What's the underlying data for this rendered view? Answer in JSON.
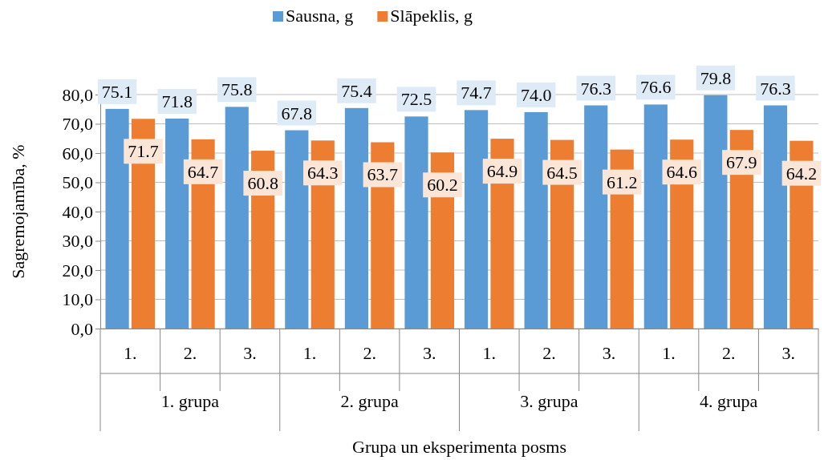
{
  "chart_data": {
    "type": "bar",
    "xlabel": "Grupa un eksperimenta posms",
    "ylabel": "Sagremojamība, %",
    "categories": [
      "1.",
      "2.",
      "3.",
      "1.",
      "2.",
      "3.",
      "1.",
      "2.",
      "3.",
      "1.",
      "2.",
      "3."
    ],
    "annotations": [
      "1. grupa",
      "2. grupa",
      "3. grupa",
      "4. grupa"
    ],
    "series": [
      {
        "name": "Sausna, g",
        "color": "#5b9bd5",
        "values": [
          75.1,
          71.8,
          75.8,
          67.8,
          75.4,
          72.5,
          74.7,
          74.0,
          76.3,
          76.6,
          79.8,
          76.3
        ],
        "value_labels": [
          "75.1",
          "71.8",
          "75.8",
          "67.8",
          "75.4",
          "72.5",
          "74.7",
          "74.0",
          "76.3",
          "76.6",
          "79.8",
          "76.3"
        ]
      },
      {
        "name": "Slāpeklis, g",
        "color": "#ed7d31",
        "values": [
          71.7,
          64.7,
          60.8,
          64.3,
          63.7,
          60.2,
          64.9,
          64.5,
          61.2,
          64.6,
          67.9,
          64.2
        ],
        "value_labels": [
          "71.7",
          "64.7",
          "60.8",
          "64.3",
          "63.7",
          "60.2",
          "64.9",
          "64.5",
          "61.2",
          "64.6",
          "67.9",
          "64.2"
        ]
      }
    ],
    "ylim": [
      0,
      80
    ],
    "yticks": [
      {
        "value": 0,
        "label": "0,0"
      },
      {
        "value": 10,
        "label": "10,0"
      },
      {
        "value": 20,
        "label": "20,0"
      },
      {
        "value": 30,
        "label": "30,0"
      },
      {
        "value": 40,
        "label": "40,0"
      },
      {
        "value": 50,
        "label": "50,0"
      },
      {
        "value": 60,
        "label": "60,0"
      },
      {
        "value": 70,
        "label": "70,0"
      },
      {
        "value": 80,
        "label": "80,0"
      }
    ],
    "grid": "y",
    "legend": "top"
  }
}
